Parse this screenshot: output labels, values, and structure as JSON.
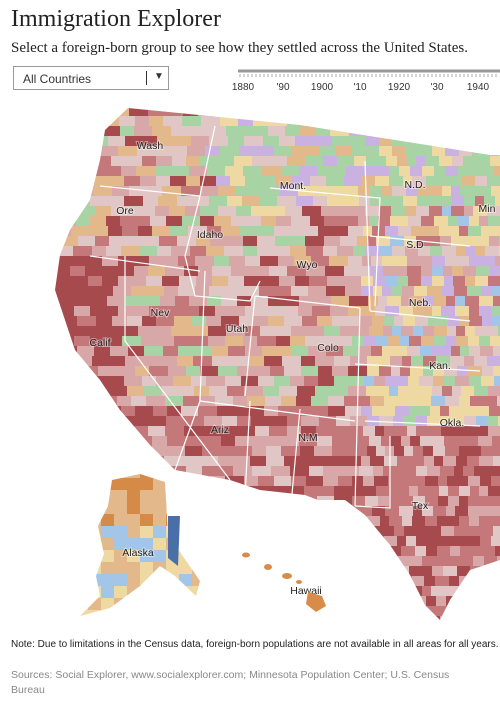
{
  "header": {
    "title": "Immigration Explorer",
    "subtitle": "Select a foreign-born group to see how they settled across the United States."
  },
  "controls": {
    "dropdown": "All Countries",
    "timeline": [
      "1880",
      "'90",
      "1900",
      "'10",
      "1920",
      "'30",
      "1940"
    ]
  },
  "map": {
    "labels": [
      "Wash",
      "Mont.",
      "N.D.",
      "Min",
      "Ore",
      "Idaho",
      "Wyo",
      "S.D",
      "Neb.",
      "Nev",
      "Utah",
      "Colo",
      "Kan.",
      "Calif",
      "Ariz",
      "N.M",
      "Okla.",
      "Tex",
      "Alaska",
      "Hawaii"
    ]
  },
  "footer": {
    "note": "Note: Due to limitations in the Census data, foreign-born populations are not available in all areas for all years.",
    "sources": "Sources: Social Explorer, www.socialexplorer.com; Minnesota Population Center; U.S. Census Bureau"
  }
}
